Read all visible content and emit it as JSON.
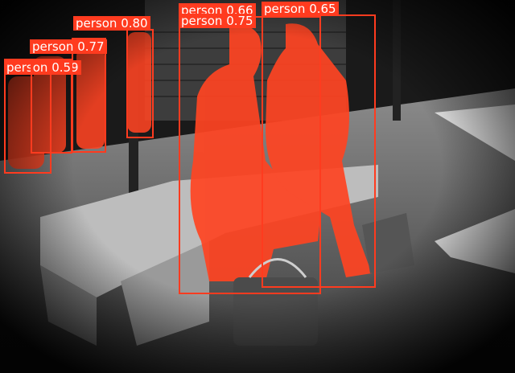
{
  "image": {
    "description_colors": {
      "mask": "#ff4422",
      "box": "#ff3b1f",
      "label_text": "#ffffff",
      "pavement": "#5a5a5a",
      "bench": "#bdbdbd"
    }
  },
  "detections": [
    {
      "label": "person",
      "score": "0.66"
    },
    {
      "label": "person",
      "score": "0.65"
    },
    {
      "label": "person",
      "score": "0.75"
    },
    {
      "label": "person",
      "score": "0.80"
    },
    {
      "label": "person",
      "score": "0.77"
    },
    {
      "label": "person",
      "score": "0.59"
    }
  ]
}
